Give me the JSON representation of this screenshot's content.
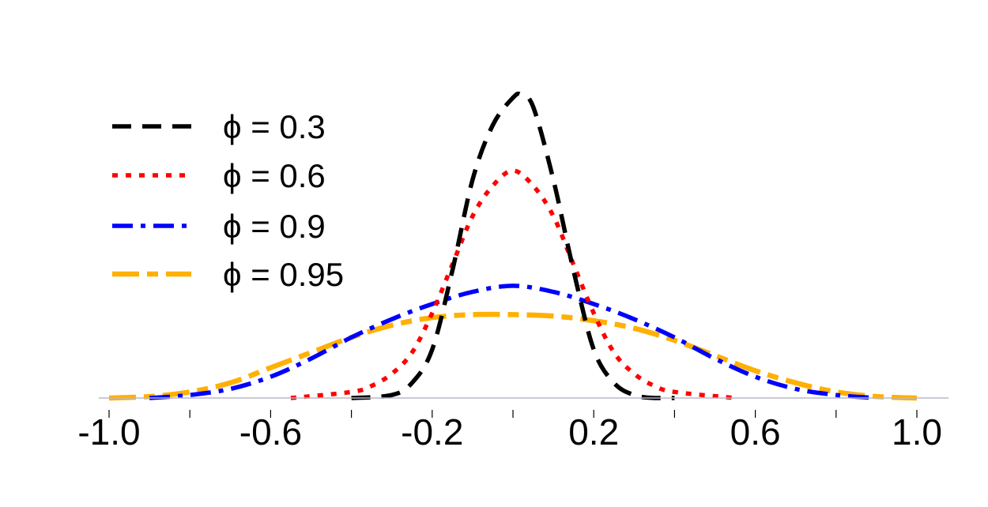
{
  "chart_data": {
    "type": "line",
    "title": "",
    "xlabel": "",
    "ylabel": "",
    "xlim": [
      -1.05,
      1.05
    ],
    "ylim": [
      0,
      1.0
    ],
    "grid": false,
    "legend_position": "top-left",
    "x_ticks": [
      {
        "value": -1.0,
        "label": "-1.0"
      },
      {
        "value": -0.6,
        "label": "-0.6"
      },
      {
        "value": -0.2,
        "label": "-0.2"
      },
      {
        "value": 0.2,
        "label": "0.2"
      },
      {
        "value": 0.6,
        "label": "0.6"
      },
      {
        "value": 1.0,
        "label": "1.0"
      }
    ],
    "x_minor_ticks": [
      -1.0,
      -0.8,
      -0.6,
      -0.4,
      -0.2,
      0.0,
      0.2,
      0.4,
      0.6,
      0.8,
      1.0
    ],
    "series": [
      {
        "name": "ϕ = 0.3",
        "color": "#000000",
        "dash": "dashed",
        "x": [
          -0.4,
          -0.3,
          -0.25,
          -0.2,
          -0.15,
          -0.1,
          -0.05,
          0.0,
          0.02,
          0.05,
          0.1,
          0.15,
          0.2,
          0.25,
          0.3,
          0.35,
          0.4
        ],
        "y": [
          0.0,
          0.01,
          0.05,
          0.16,
          0.42,
          0.72,
          0.9,
          0.99,
          1.0,
          0.96,
          0.72,
          0.42,
          0.16,
          0.05,
          0.01,
          0.0,
          0.0
        ]
      },
      {
        "name": "ϕ = 0.6",
        "color": "#ff0000",
        "dash": "dotted",
        "x": [
          -0.55,
          -0.4,
          -0.35,
          -0.3,
          -0.25,
          -0.2,
          -0.15,
          -0.1,
          -0.05,
          0.0,
          0.05,
          0.1,
          0.15,
          0.2,
          0.25,
          0.3,
          0.35,
          0.4,
          0.55
        ],
        "y": [
          0.0,
          0.02,
          0.04,
          0.08,
          0.15,
          0.28,
          0.44,
          0.6,
          0.7,
          0.75,
          0.7,
          0.6,
          0.44,
          0.28,
          0.15,
          0.08,
          0.04,
          0.02,
          0.0
        ]
      },
      {
        "name": "ϕ = 0.9",
        "color": "#0000ff",
        "dash": "dashdot",
        "x": [
          -0.9,
          -0.8,
          -0.7,
          -0.6,
          -0.5,
          -0.4,
          -0.3,
          -0.2,
          -0.1,
          0.0,
          0.1,
          0.2,
          0.3,
          0.4,
          0.5,
          0.6,
          0.7,
          0.8,
          0.9
        ],
        "y": [
          0.0,
          0.01,
          0.03,
          0.07,
          0.13,
          0.2,
          0.26,
          0.31,
          0.35,
          0.37,
          0.35,
          0.31,
          0.26,
          0.2,
          0.13,
          0.07,
          0.03,
          0.01,
          0.0
        ]
      },
      {
        "name": "ϕ = 0.95",
        "color": "#ffb000",
        "dash": "longdash",
        "x": [
          -1.0,
          -0.9,
          -0.8,
          -0.7,
          -0.6,
          -0.5,
          -0.4,
          -0.3,
          -0.2,
          -0.1,
          0.0,
          0.1,
          0.2,
          0.3,
          0.4,
          0.5,
          0.6,
          0.7,
          0.8,
          0.9,
          1.0
        ],
        "y": [
          0.0,
          0.005,
          0.02,
          0.05,
          0.1,
          0.15,
          0.2,
          0.24,
          0.265,
          0.275,
          0.275,
          0.27,
          0.255,
          0.23,
          0.19,
          0.14,
          0.09,
          0.05,
          0.02,
          0.005,
          0.0
        ]
      }
    ]
  }
}
